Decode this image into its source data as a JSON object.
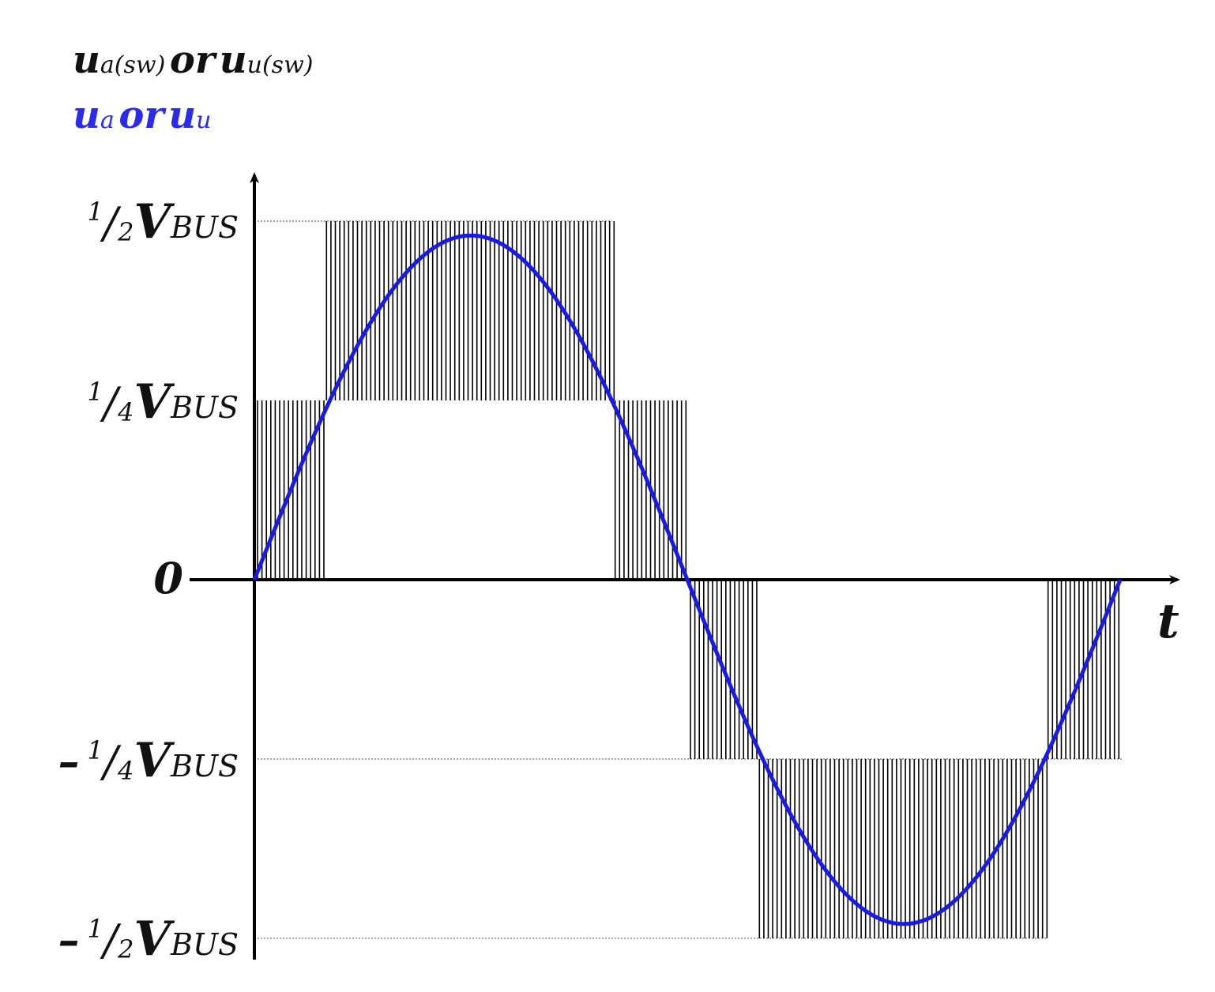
{
  "legend": {
    "switched": {
      "main_a": "u",
      "sub_a": "a(sw)",
      "or": "or",
      "main_b": "u",
      "sub_b": "u(sw)",
      "color": "#111111"
    },
    "reference": {
      "main_a": "u",
      "sub_a": "a",
      "or": "or",
      "main_b": "u",
      "sub_b": "u",
      "color": "#2b2bea"
    }
  },
  "y_levels": [
    {
      "key": "half_pos",
      "sign": "",
      "num": "1",
      "den": "2",
      "v": "V",
      "bus": "BUS",
      "value": 0.5
    },
    {
      "key": "quarter_pos",
      "sign": "",
      "num": "1",
      "den": "4",
      "v": "V",
      "bus": "BUS",
      "value": 0.25
    },
    {
      "key": "zero",
      "label": "0",
      "value": 0
    },
    {
      "key": "quarter_neg",
      "sign": "–",
      "num": "1",
      "den": "4",
      "v": "V",
      "bus": "BUS",
      "value": -0.25
    },
    {
      "key": "half_neg",
      "sign": "–",
      "num": "1",
      "den": "2",
      "v": "V",
      "bus": "BUS",
      "value": -0.5
    }
  ],
  "x_axis_label": "t",
  "colors": {
    "axis": "#000000",
    "hatch": "#000000",
    "sine": "#1a1ae6",
    "dotted": "#888888"
  }
}
